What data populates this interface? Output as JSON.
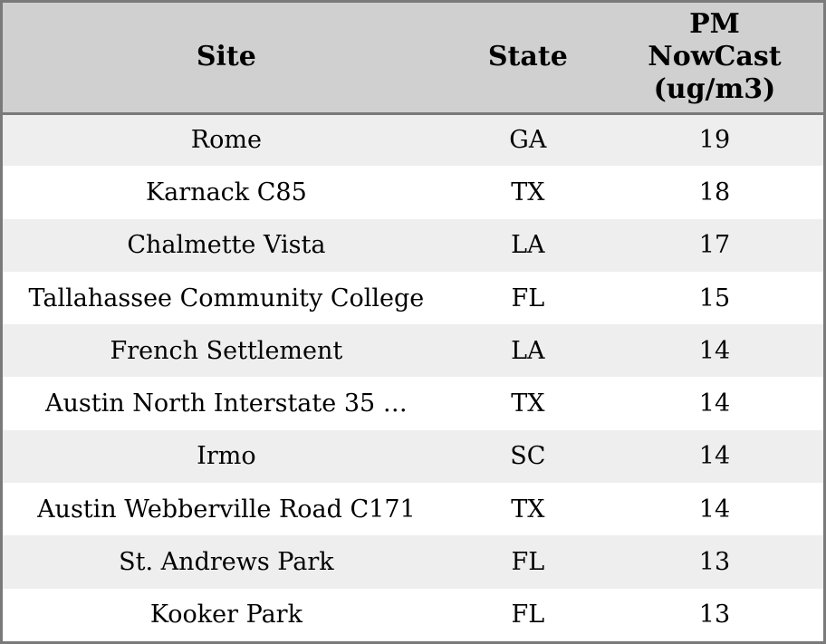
{
  "colors": {
    "header_bg": "#d0d0d0",
    "row_alt": "#eeeeee",
    "row_default": "#ffffff",
    "border": "#7a7a7a",
    "text": "#000000"
  },
  "table": {
    "columns": [
      {
        "label": "Site"
      },
      {
        "label": "State"
      },
      {
        "label": "PM NowCast (ug/m3)"
      }
    ],
    "rows": [
      {
        "site": "Rome",
        "state": "GA",
        "pm": "19"
      },
      {
        "site": "Karnack C85",
        "state": "TX",
        "pm": "18"
      },
      {
        "site": "Chalmette Vista",
        "state": "LA",
        "pm": "17"
      },
      {
        "site": "Tallahassee Community College",
        "state": "FL",
        "pm": "15"
      },
      {
        "site": "French Settlement",
        "state": "LA",
        "pm": "14"
      },
      {
        "site": "Austin North Interstate 35 …",
        "state": "TX",
        "pm": "14"
      },
      {
        "site": "Irmo",
        "state": "SC",
        "pm": "14"
      },
      {
        "site": "Austin Webberville Road C171",
        "state": "TX",
        "pm": "14"
      },
      {
        "site": "St. Andrews Park",
        "state": "FL",
        "pm": "13"
      },
      {
        "site": "Kooker Park",
        "state": "FL",
        "pm": "13"
      }
    ]
  },
  "chart_data": {
    "type": "table",
    "title": "",
    "columns": [
      "Site",
      "State",
      "PM NowCast (ug/m3)"
    ],
    "rows": [
      [
        "Rome",
        "GA",
        19
      ],
      [
        "Karnack C85",
        "TX",
        18
      ],
      [
        "Chalmette Vista",
        "LA",
        17
      ],
      [
        "Tallahassee Community College",
        "FL",
        15
      ],
      [
        "French Settlement",
        "LA",
        14
      ],
      [
        "Austin North Interstate 35 …",
        "TX",
        14
      ],
      [
        "Irmo",
        "SC",
        14
      ],
      [
        "Austin Webberville Road C171",
        "TX",
        14
      ],
      [
        "St. Andrews Park",
        "FL",
        13
      ],
      [
        "Kooker Park",
        "FL",
        13
      ]
    ],
    "layout_hints": {
      "header_background": "#d0d0d0",
      "alternating_row_background": "#eeeeee",
      "text_align": "center",
      "first_data_row_shaded": true
    }
  }
}
